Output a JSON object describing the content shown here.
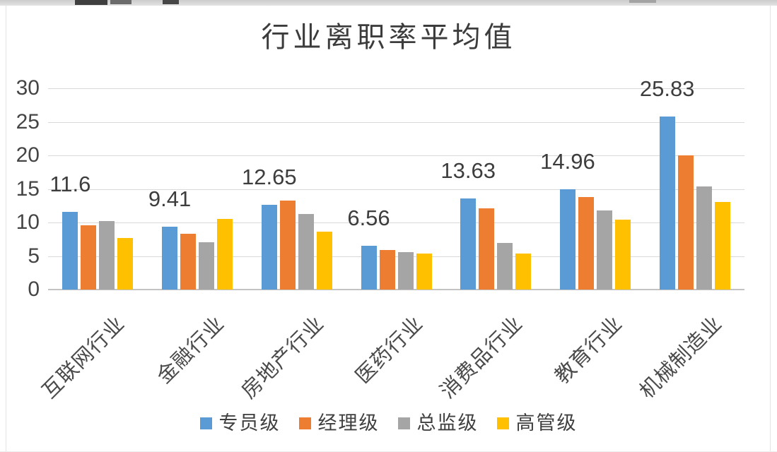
{
  "chart_data": {
    "type": "bar",
    "title": "行业离职率平均值",
    "categories": [
      "互联网行业",
      "金融行业",
      "房地产行业",
      "医药行业",
      "消费品行业",
      "教育行业",
      "机械制造业"
    ],
    "series": [
      {
        "name": "专员级",
        "color": "#5B9BD5",
        "values": [
          11.6,
          9.41,
          12.65,
          6.56,
          13.63,
          14.96,
          25.83
        ]
      },
      {
        "name": "经理级",
        "color": "#ED7D31",
        "values": [
          9.6,
          8.3,
          13.3,
          5.9,
          12.1,
          13.8,
          20.0
        ]
      },
      {
        "name": "总监级",
        "color": "#A5A5A5",
        "values": [
          10.2,
          7.1,
          11.3,
          5.6,
          6.9,
          11.8,
          15.4
        ]
      },
      {
        "name": "高管级",
        "color": "#FFC000",
        "values": [
          7.7,
          10.5,
          8.6,
          5.4,
          5.4,
          10.4,
          13.1
        ]
      }
    ],
    "value_labels": {
      "series": "专员级",
      "texts": [
        "11.6",
        "9.41",
        "12.65",
        "6.56",
        "13.63",
        "14.96",
        "25.83"
      ]
    },
    "yticks": [
      0,
      5,
      10,
      15,
      20,
      25,
      30
    ],
    "ylim": [
      0,
      30
    ],
    "xlabel": "",
    "ylabel": "",
    "grid": true,
    "grid_color": "#d9d9d9",
    "axis_line_color": "#c3c3c3",
    "text_color": "#3d3d3d",
    "legend_position": "bottom",
    "x_tick_rotation_deg": 45
  }
}
